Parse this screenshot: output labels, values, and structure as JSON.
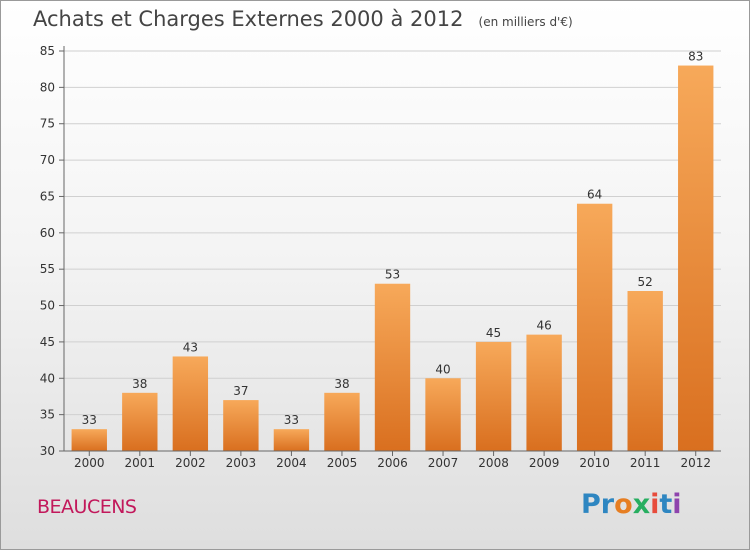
{
  "title": "Achats et Charges Externes 2000 à 2012",
  "subtitle": "(en milliers d'€)",
  "commune": "BEAUCENS",
  "logo": {
    "text": "Proxiti",
    "letters": [
      "P",
      "r",
      "o",
      "x",
      "i",
      "t",
      "i"
    ],
    "colors": [
      "#2e86c1",
      "#2e86c1",
      "#e67e22",
      "#27ae60",
      "#e74c3c",
      "#2e86c1",
      "#8e44ad"
    ]
  },
  "colors": {
    "bar_light": "#f7a95a",
    "bar_dark": "#d96f1f",
    "grid": "#d0d0d0",
    "axis_text": "#333333"
  },
  "chart_data": {
    "type": "bar",
    "categories": [
      "2000",
      "2001",
      "2002",
      "2003",
      "2004",
      "2005",
      "2006",
      "2007",
      "2008",
      "2009",
      "2010",
      "2011",
      "2012"
    ],
    "values": [
      33,
      38,
      43,
      37,
      33,
      38,
      53,
      40,
      45,
      46,
      64,
      52,
      83
    ],
    "ylim": [
      30,
      85
    ],
    "yticks": [
      30,
      35,
      40,
      45,
      50,
      55,
      60,
      65,
      70,
      75,
      80,
      85
    ],
    "grid": true,
    "data_labels": true
  }
}
